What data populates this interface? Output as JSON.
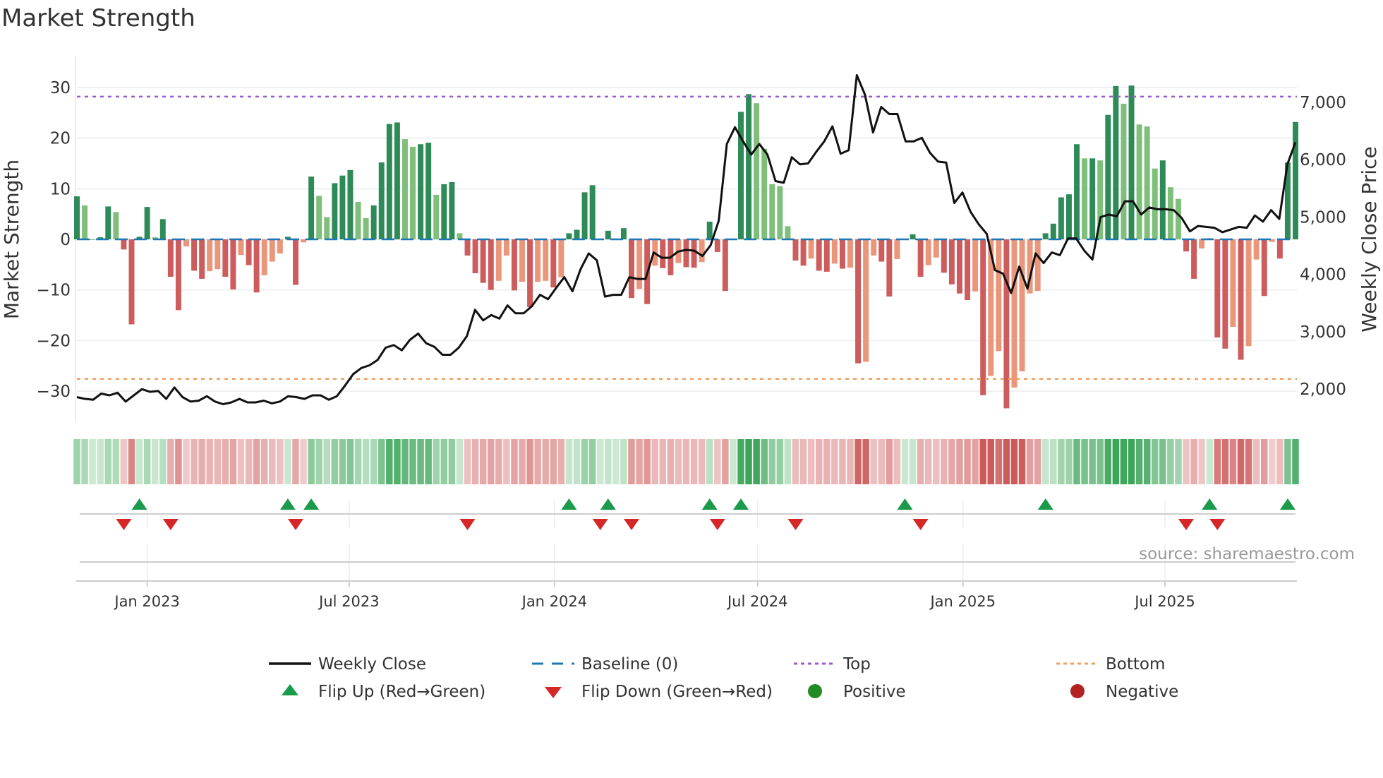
{
  "chart_data": {
    "type": "bar",
    "title": "Market Strength",
    "ylabel": "Market Strength",
    "y2label": "Weekly Close Price",
    "ylim": [
      -36,
      36
    ],
    "y2lim": [
      1420,
      7850
    ],
    "yticks": [
      30,
      20,
      10,
      0,
      -10,
      -20,
      -30
    ],
    "ytick_labels": [
      "30",
      "20",
      "10",
      "0",
      "−10",
      "−20",
      "−30"
    ],
    "y2ticks": [
      7000,
      6000,
      5000,
      4000,
      3000,
      2000
    ],
    "y2tick_labels": [
      "7,000",
      "6,000",
      "5,000",
      "4,000",
      "3,000",
      "2,000"
    ],
    "first_week": "2022-10-30",
    "xticks": [
      {
        "date": "2023-01-01",
        "label": "Jan 2023"
      },
      {
        "date": "2023-07-01",
        "label": "Jul 2023"
      },
      {
        "date": "2024-01-01",
        "label": "Jan 2024"
      },
      {
        "date": "2024-07-01",
        "label": "Jul 2024"
      },
      {
        "date": "2025-01-01",
        "label": "Jan 2025"
      },
      {
        "date": "2025-07-01",
        "label": "Jul 2025"
      }
    ],
    "top_level": 28.2,
    "bottom_level": -27.6,
    "baseline": 0,
    "strength": [
      8.5,
      6.7,
      0,
      0.4,
      6.5,
      5.4,
      -2,
      -16.8,
      0.5,
      6.4,
      0.4,
      4,
      -7.4,
      -14,
      -1.4,
      -6.2,
      -7.8,
      -6.3,
      -5.9,
      -7.4,
      -9.9,
      -3.1,
      -5.1,
      -10.5,
      -7.1,
      -4.4,
      -2.8,
      0.5,
      -9,
      -0.6,
      12.4,
      8.6,
      4.4,
      11.1,
      12.6,
      13.7,
      7.4,
      4.2,
      6.7,
      15.2,
      22.8,
      23.1,
      19.8,
      18.3,
      18.8,
      19.1,
      8.8,
      10.9,
      11.3,
      1.2,
      -3.2,
      -6.7,
      -8.6,
      -10,
      -8.2,
      -3.2,
      -10.1,
      -8.4,
      -13.4,
      -8.4,
      -8.2,
      -9.5,
      -7.5,
      1.2,
      1.9,
      9.3,
      10.7,
      0,
      1.7,
      0,
      2.2,
      -11.6,
      -9.8,
      -12.8,
      -5.2,
      -5.7,
      -7.1,
      -4.7,
      -5.5,
      -5.6,
      -4.5,
      3.5,
      -2.5,
      -10.2,
      0,
      25.2,
      28.7,
      26.9,
      17.9,
      10.9,
      10.5,
      2.6,
      -4.2,
      -5.2,
      -3.8,
      -6.2,
      -6.4,
      -4.8,
      -5.8,
      -5.6,
      -24.5,
      -24.2,
      -3.2,
      -4.4,
      -11.3,
      -3.9,
      0.1,
      1,
      -7.4,
      -5.1,
      -3.6,
      -6.6,
      -8.9,
      -10.7,
      -12,
      -10.3,
      -30.8,
      -27,
      -22.1,
      -33.4,
      -29.3,
      -26.1,
      -10.7,
      -10.2,
      1.2,
      3.1,
      8.3,
      8.9,
      18.8,
      16,
      16,
      15.6,
      24.6,
      30.3,
      26.8,
      30.4,
      22.7,
      22.3,
      14,
      15.6,
      10.3,
      8,
      -2.4,
      -7.8,
      -1.8,
      0.2,
      -19.4,
      -21.6,
      -17.3,
      -23.8,
      -21.1,
      -4,
      -11.2,
      -0.5,
      -3.8,
      15.2,
      23.2
    ],
    "weekly_close": [
      1846,
      1815,
      1800,
      1908,
      1877,
      1923,
      1769,
      1877,
      1985,
      1938,
      1954,
      1815,
      2015,
      1846,
      1769,
      1785,
      1862,
      1769,
      1723,
      1754,
      1815,
      1754,
      1754,
      1785,
      1738,
      1769,
      1862,
      1846,
      1815,
      1877,
      1877,
      1800,
      1862,
      2046,
      2246,
      2354,
      2400,
      2492,
      2708,
      2754,
      2662,
      2846,
      2954,
      2785,
      2723,
      2585,
      2585,
      2708,
      2908,
      3369,
      3185,
      3277,
      3215,
      3446,
      3308,
      3308,
      3431,
      3631,
      3554,
      3754,
      3938,
      3692,
      4077,
      4354,
      4231,
      3600,
      3631,
      3631,
      3938,
      3908,
      3908,
      4369,
      4277,
      4277,
      4385,
      4415,
      4400,
      4308,
      4492,
      4923,
      6262,
      6554,
      6308,
      6077,
      6262,
      6077,
      5615,
      5585,
      6031,
      5908,
      5923,
      6123,
      6308,
      6569,
      6092,
      6154,
      7462,
      7123,
      6462,
      6908,
      6785,
      6785,
      6308,
      6308,
      6369,
      6108,
      5954,
      5938,
      5231,
      5415,
      5077,
      4862,
      4692,
      4062,
      4000,
      3662,
      4123,
      3738,
      4354,
      4185,
      4369,
      4323,
      4615,
      4615,
      4400,
      4246,
      4985,
      5031,
      5000,
      5262,
      5262,
      5031,
      5154,
      5123,
      5123,
      5108,
      4969,
      4738,
      4831,
      4815,
      4800,
      4723,
      4769,
      4815,
      4800,
      5015,
      4908,
      5108,
      4954,
      5908,
      6292
    ],
    "flip_up_weeks": [
      8,
      27,
      30,
      63,
      68,
      81,
      85,
      106,
      124,
      145,
      155
    ],
    "flip_down_weeks": [
      6,
      12,
      28,
      50,
      67,
      71,
      82,
      92,
      108,
      142,
      146
    ],
    "legend": [
      {
        "label": "Weekly Close",
        "kind": "line"
      },
      {
        "label": "Baseline (0)",
        "kind": "dash"
      },
      {
        "label": "Top",
        "kind": "dot-purple"
      },
      {
        "label": "Bottom",
        "kind": "dot-orange"
      },
      {
        "label": "Flip Up (Red→Green)",
        "kind": "tri-up"
      },
      {
        "label": "Flip Down (Green→Red)",
        "kind": "tri-down"
      },
      {
        "label": "Positive",
        "kind": "dot-green"
      },
      {
        "label": "Negative",
        "kind": "dot-red"
      }
    ],
    "legend_position": "bottom",
    "source": "source: sharemaestro.com"
  },
  "colors": {
    "pos_up": "#2e8b57",
    "pos_down": "#7fbf7b",
    "neg_down": "#cd5c5c",
    "neg_up": "#e9967a",
    "baseline": "#1f77b4",
    "top": "#9b59d6",
    "bottom": "#f0a05a",
    "line": "#111111",
    "flip_up": "#1a9a4a",
    "flip_down": "#d62728",
    "positive": "#228b22",
    "negative": "#b22222"
  }
}
